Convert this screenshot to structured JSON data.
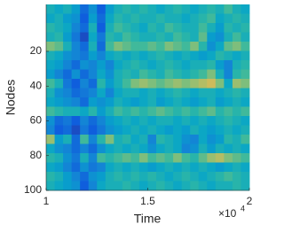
{
  "chart_data": {
    "type": "heatmap",
    "xlabel": "Time",
    "ylabel": "Nodes",
    "x_multiplier": {
      "base": "×10",
      "exponent": "4"
    },
    "xlim": [
      10000,
      20000
    ],
    "xticks": [
      {
        "value": 10000,
        "label": "1"
      },
      {
        "value": 15000,
        "label": "1.5"
      },
      {
        "value": 20000,
        "label": "2"
      }
    ],
    "ylim": [
      -7,
      100
    ],
    "yticks": [
      20,
      40,
      60,
      80,
      100
    ],
    "y_reversed": true,
    "clim": [
      0,
      1
    ],
    "colormap": [
      "#352a87",
      "#0f5cdd",
      "#1481d6",
      "#06a4ca",
      "#2eb7a4",
      "#87bf77",
      "#d1bb59",
      "#f9fb0e"
    ],
    "z": [
      [
        0.5,
        0.45,
        0.5,
        0.4,
        0.2,
        0.35,
        0.15,
        0.4,
        0.5,
        0.55,
        0.5,
        0.55,
        0.5,
        0.45,
        0.5,
        0.55,
        0.5,
        0.45,
        0.5,
        0.55,
        0.5,
        0.6,
        0.5,
        0.45
      ],
      [
        0.45,
        0.5,
        0.4,
        0.35,
        0.15,
        0.4,
        0.2,
        0.45,
        0.55,
        0.5,
        0.55,
        0.5,
        0.5,
        0.55,
        0.5,
        0.5,
        0.45,
        0.5,
        0.55,
        0.6,
        0.45,
        0.5,
        0.55,
        0.5
      ],
      [
        0.55,
        0.5,
        0.45,
        0.3,
        0.2,
        0.5,
        0.15,
        0.5,
        0.6,
        0.55,
        0.5,
        0.45,
        0.55,
        0.5,
        0.6,
        0.55,
        0.5,
        0.5,
        0.6,
        0.5,
        0.4,
        0.55,
        0.5,
        0.55
      ],
      [
        0.5,
        0.55,
        0.4,
        0.25,
        0.1,
        0.45,
        0.25,
        0.55,
        0.5,
        0.6,
        0.55,
        0.5,
        0.5,
        0.55,
        0.5,
        0.6,
        0.55,
        0.5,
        0.65,
        0.4,
        0.35,
        0.5,
        0.6,
        0.5
      ],
      [
        0.7,
        0.65,
        0.5,
        0.3,
        0.2,
        0.5,
        0.2,
        0.6,
        0.7,
        0.65,
        0.6,
        0.6,
        0.65,
        0.6,
        0.7,
        0.65,
        0.6,
        0.7,
        0.55,
        0.35,
        0.45,
        0.65,
        0.7,
        0.6
      ],
      [
        0.5,
        0.45,
        0.35,
        0.3,
        0.25,
        0.4,
        0.3,
        0.45,
        0.5,
        0.45,
        0.5,
        0.45,
        0.5,
        0.55,
        0.5,
        0.45,
        0.5,
        0.45,
        0.4,
        0.45,
        0.55,
        0.5,
        0.45,
        0.5
      ],
      [
        0.45,
        0.4,
        0.3,
        0.2,
        0.35,
        0.3,
        0.4,
        0.3,
        0.45,
        0.5,
        0.55,
        0.5,
        0.45,
        0.5,
        0.55,
        0.5,
        0.45,
        0.5,
        0.5,
        0.55,
        0.4,
        0.3,
        0.5,
        0.55
      ],
      [
        0.4,
        0.3,
        0.2,
        0.35,
        0.2,
        0.3,
        0.45,
        0.35,
        0.5,
        0.55,
        0.5,
        0.6,
        0.55,
        0.5,
        0.6,
        0.55,
        0.5,
        0.55,
        0.6,
        0.7,
        0.5,
        0.3,
        0.55,
        0.6
      ],
      [
        0.6,
        0.5,
        0.25,
        0.15,
        0.3,
        0.2,
        0.55,
        0.4,
        0.5,
        0.6,
        0.7,
        0.75,
        0.7,
        0.65,
        0.7,
        0.75,
        0.7,
        0.75,
        0.8,
        0.85,
        0.7,
        0.45,
        0.75,
        0.7
      ],
      [
        0.5,
        0.35,
        0.3,
        0.2,
        0.25,
        0.3,
        0.45,
        0.3,
        0.45,
        0.5,
        0.5,
        0.45,
        0.5,
        0.45,
        0.5,
        0.55,
        0.5,
        0.45,
        0.5,
        0.5,
        0.45,
        0.5,
        0.55,
        0.5
      ],
      [
        0.45,
        0.4,
        0.35,
        0.3,
        0.2,
        0.4,
        0.35,
        0.4,
        0.5,
        0.45,
        0.4,
        0.45,
        0.5,
        0.4,
        0.45,
        0.5,
        0.45,
        0.4,
        0.45,
        0.5,
        0.4,
        0.45,
        0.5,
        0.45
      ],
      [
        0.6,
        0.55,
        0.5,
        0.5,
        0.45,
        0.55,
        0.4,
        0.5,
        0.6,
        0.55,
        0.6,
        0.55,
        0.6,
        0.65,
        0.6,
        0.55,
        0.6,
        0.55,
        0.6,
        0.65,
        0.55,
        0.6,
        0.55,
        0.6
      ],
      [
        0.35,
        0.2,
        0.25,
        0.15,
        0.3,
        0.2,
        0.3,
        0.4,
        0.45,
        0.5,
        0.45,
        0.5,
        0.45,
        0.5,
        0.5,
        0.45,
        0.5,
        0.45,
        0.5,
        0.45,
        0.5,
        0.55,
        0.5,
        0.45
      ],
      [
        0.3,
        0.15,
        0.2,
        0.1,
        0.25,
        0.15,
        0.25,
        0.35,
        0.4,
        0.45,
        0.5,
        0.45,
        0.5,
        0.45,
        0.4,
        0.45,
        0.4,
        0.5,
        0.45,
        0.4,
        0.45,
        0.5,
        0.45,
        0.5
      ],
      [
        0.75,
        0.4,
        0.5,
        0.2,
        0.6,
        0.3,
        0.55,
        0.7,
        0.5,
        0.55,
        0.45,
        0.5,
        0.3,
        0.55,
        0.5,
        0.45,
        0.35,
        0.3,
        0.45,
        0.35,
        0.4,
        0.55,
        0.5,
        0.6
      ],
      [
        0.45,
        0.35,
        0.3,
        0.2,
        0.3,
        0.2,
        0.35,
        0.45,
        0.5,
        0.45,
        0.5,
        0.45,
        0.35,
        0.45,
        0.5,
        0.45,
        0.3,
        0.35,
        0.5,
        0.4,
        0.5,
        0.45,
        0.5,
        0.45
      ],
      [
        0.55,
        0.5,
        0.35,
        0.25,
        0.5,
        0.3,
        0.6,
        0.55,
        0.6,
        0.65,
        0.6,
        0.7,
        0.6,
        0.65,
        0.6,
        0.7,
        0.6,
        0.55,
        0.65,
        0.75,
        0.8,
        0.7,
        0.65,
        0.6
      ],
      [
        0.45,
        0.4,
        0.3,
        0.2,
        0.35,
        0.25,
        0.3,
        0.45,
        0.5,
        0.45,
        0.5,
        0.45,
        0.4,
        0.45,
        0.5,
        0.45,
        0.5,
        0.45,
        0.5,
        0.45,
        0.4,
        0.45,
        0.5,
        0.45
      ],
      [
        0.55,
        0.5,
        0.4,
        0.3,
        0.2,
        0.35,
        0.4,
        0.5,
        0.55,
        0.5,
        0.55,
        0.5,
        0.55,
        0.5,
        0.45,
        0.5,
        0.55,
        0.5,
        0.45,
        0.5,
        0.55,
        0.6,
        0.55,
        0.5
      ],
      [
        0.5,
        0.45,
        0.4,
        0.35,
        0.15,
        0.3,
        0.45,
        0.5,
        0.5,
        0.55,
        0.5,
        0.45,
        0.5,
        0.55,
        0.5,
        0.45,
        0.5,
        0.55,
        0.5,
        0.45,
        0.5,
        0.5,
        0.55,
        0.5
      ]
    ]
  }
}
